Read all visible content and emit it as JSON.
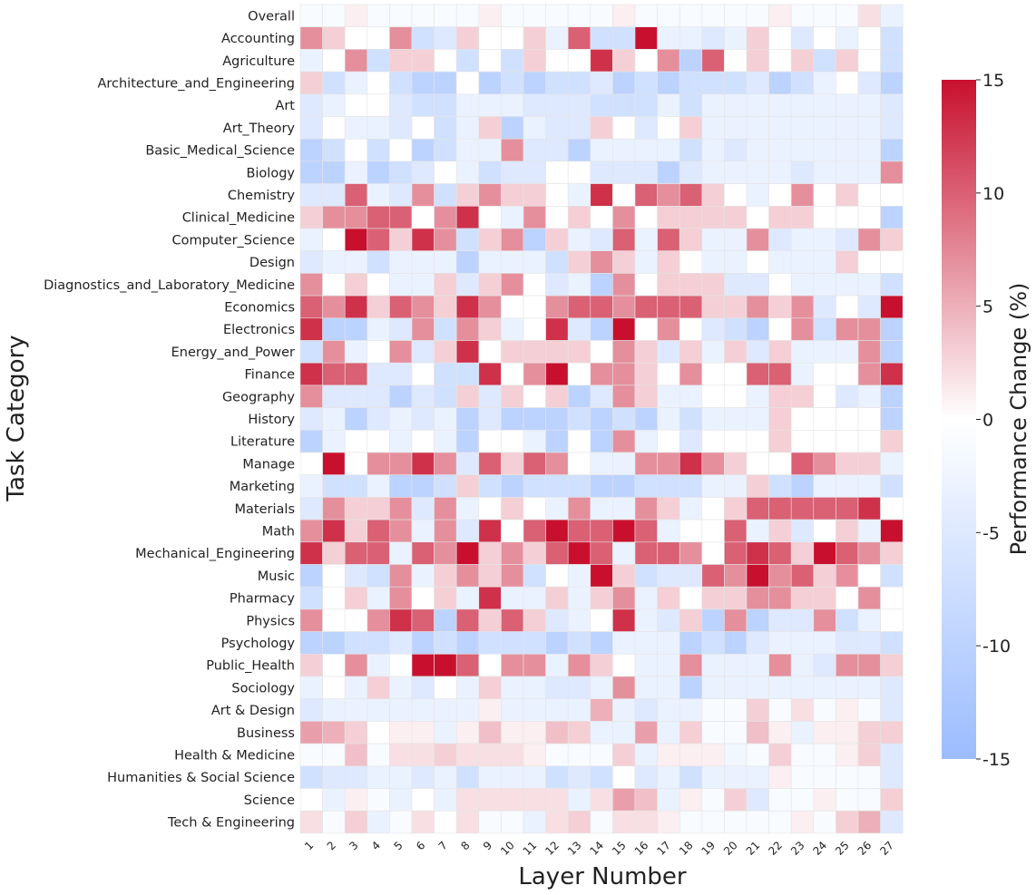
{
  "chart_data": {
    "type": "heatmap",
    "title": "",
    "xlabel": "Layer Number",
    "ylabel": "Task Category",
    "colorbar_label": "Performance Change (%)",
    "colorbar_range": [
      -15,
      15
    ],
    "colorbar_ticks": [
      "15",
      "10",
      "5",
      "0",
      "-5",
      "-10",
      "-15"
    ],
    "colormap": [
      "#9bbcff",
      "#ffffff",
      "#c8102e"
    ],
    "x": [
      "1",
      "2",
      "3",
      "4",
      "5",
      "6",
      "7",
      "8",
      "9",
      "10",
      "11",
      "12",
      "13",
      "14",
      "15",
      "16",
      "17",
      "18",
      "19",
      "20",
      "21",
      "22",
      "23",
      "24",
      "25",
      "26",
      "27"
    ],
    "y": [
      "Overall",
      "Accounting",
      "Agriculture",
      "Architecture_and_Engineering",
      "Art",
      "Art_Theory",
      "Basic_Medical_Science",
      "Biology",
      "Chemistry",
      "Clinical_Medicine",
      "Computer_Science",
      "Design",
      "Diagnostics_and_Laboratory_Medicine",
      "Economics",
      "Electronics",
      "Energy_and_Power",
      "Finance",
      "Geography",
      "History",
      "Literature",
      "Manage",
      "Marketing",
      "Materials",
      "Math",
      "Mechanical_Engineering",
      "Music",
      "Pharmacy",
      "Physics",
      "Psychology",
      "Public_Health",
      "Sociology",
      "Art & Design",
      "Business",
      "Health & Medicine",
      "Humanities & Social Science",
      "Science",
      "Tech & Engineering"
    ],
    "values": [
      [
        -1,
        -1,
        1,
        -1,
        -1,
        -1,
        -1,
        -1,
        1,
        -1,
        -1,
        -1,
        -1,
        -1,
        1,
        -1,
        -1,
        -1,
        -1,
        -1,
        -1,
        1,
        -1,
        -1,
        -1,
        2,
        -3
      ],
      [
        7,
        3,
        0,
        0,
        7,
        -7,
        -5,
        3,
        0,
        0,
        3,
        -3,
        10,
        -7,
        -7,
        15,
        -3,
        -3,
        -5,
        -3,
        3,
        0,
        -5,
        0,
        -3,
        0,
        -7
      ],
      [
        -3,
        0,
        7,
        -7,
        3,
        3,
        0,
        -7,
        0,
        -7,
        3,
        0,
        0,
        13,
        3,
        0,
        7,
        -10,
        10,
        0,
        3,
        0,
        3,
        -7,
        3,
        0,
        -7
      ],
      [
        3,
        -7,
        -3,
        0,
        -7,
        -10,
        -10,
        0,
        -10,
        -7,
        -10,
        -7,
        -7,
        -5,
        -10,
        -7,
        -10,
        -7,
        -7,
        -7,
        -5,
        -10,
        -7,
        -3,
        0,
        -5,
        -10
      ],
      [
        -5,
        -3,
        0,
        0,
        -5,
        -7,
        -7,
        -3,
        -3,
        -3,
        -5,
        -5,
        -5,
        -7,
        -7,
        -7,
        -3,
        -7,
        -3,
        -3,
        -3,
        -3,
        -3,
        -3,
        -3,
        -3,
        -5
      ],
      [
        -5,
        0,
        -3,
        -3,
        -5,
        0,
        -7,
        -3,
        3,
        -10,
        -3,
        -5,
        -5,
        3,
        0,
        -5,
        0,
        3,
        -3,
        -3,
        -3,
        -3,
        -3,
        -3,
        -3,
        -3,
        -5
      ],
      [
        -10,
        -7,
        0,
        -7,
        0,
        -10,
        -7,
        -3,
        -3,
        7,
        -5,
        -5,
        -10,
        -3,
        -3,
        -3,
        -3,
        -7,
        -3,
        -5,
        -3,
        -3,
        -3,
        -3,
        -3,
        -3,
        -10
      ],
      [
        -10,
        -10,
        -3,
        -10,
        -7,
        -5,
        0,
        -3,
        -7,
        -5,
        -5,
        0,
        0,
        -5,
        -5,
        -5,
        -10,
        -5,
        -3,
        -3,
        -3,
        -3,
        -5,
        -3,
        -3,
        -3,
        7
      ],
      [
        -5,
        -5,
        10,
        -3,
        -5,
        7,
        -7,
        3,
        7,
        3,
        3,
        0,
        -3,
        13,
        0,
        10,
        7,
        10,
        3,
        0,
        -3,
        0,
        7,
        0,
        3,
        0,
        0
      ],
      [
        3,
        7,
        7,
        10,
        10,
        0,
        7,
        13,
        0,
        -3,
        7,
        0,
        3,
        0,
        7,
        0,
        3,
        3,
        3,
        3,
        0,
        3,
        3,
        0,
        0,
        0,
        -10
      ],
      [
        -3,
        0,
        15,
        10,
        3,
        13,
        7,
        -7,
        3,
        7,
        -10,
        3,
        -3,
        -5,
        10,
        -3,
        10,
        3,
        -3,
        -3,
        7,
        -5,
        -3,
        -3,
        -5,
        7,
        3
      ],
      [
        -5,
        -3,
        -3,
        -7,
        -3,
        -3,
        -3,
        -10,
        -3,
        -3,
        -3,
        -7,
        3,
        7,
        3,
        -3,
        3,
        0,
        -3,
        -3,
        0,
        -3,
        -3,
        -3,
        3,
        0,
        0
      ],
      [
        7,
        0,
        3,
        0,
        -3,
        -3,
        3,
        -5,
        3,
        7,
        0,
        -5,
        -3,
        -10,
        7,
        0,
        3,
        3,
        3,
        -5,
        -5,
        0,
        -3,
        -3,
        -3,
        -3,
        -7
      ],
      [
        10,
        7,
        13,
        3,
        10,
        7,
        3,
        13,
        7,
        0,
        0,
        7,
        10,
        10,
        7,
        10,
        10,
        10,
        3,
        3,
        7,
        3,
        7,
        -5,
        0,
        -5,
        15
      ],
      [
        13,
        -10,
        -10,
        -3,
        -5,
        7,
        -7,
        7,
        3,
        -3,
        0,
        13,
        -5,
        -10,
        15,
        0,
        7,
        0,
        -5,
        -7,
        -10,
        0,
        7,
        -7,
        7,
        7,
        -10
      ],
      [
        -7,
        7,
        -3,
        0,
        7,
        -5,
        3,
        13,
        0,
        3,
        3,
        3,
        3,
        0,
        7,
        3,
        -5,
        3,
        -3,
        3,
        -5,
        3,
        -3,
        -3,
        -3,
        7,
        -10
      ],
      [
        13,
        10,
        10,
        -5,
        -5,
        0,
        -7,
        -7,
        13,
        0,
        7,
        15,
        0,
        7,
        7,
        3,
        0,
        7,
        0,
        0,
        10,
        10,
        -3,
        0,
        0,
        7,
        13
      ],
      [
        7,
        -5,
        -5,
        -5,
        -10,
        -5,
        -7,
        3,
        -5,
        3,
        0,
        3,
        -10,
        -5,
        7,
        3,
        -3,
        -3,
        0,
        0,
        -3,
        3,
        3,
        0,
        -5,
        -3,
        -10
      ],
      [
        -5,
        -3,
        -10,
        -5,
        -3,
        -5,
        -3,
        -10,
        -5,
        -10,
        -10,
        -10,
        -7,
        -10,
        -7,
        -10,
        -3,
        -7,
        -3,
        -3,
        -3,
        3,
        0,
        0,
        0,
        0,
        -10
      ],
      [
        -10,
        -3,
        0,
        0,
        -3,
        0,
        -3,
        -10,
        0,
        0,
        -3,
        -10,
        0,
        -10,
        7,
        -3,
        0,
        -5,
        0,
        0,
        0,
        3,
        0,
        0,
        0,
        0,
        3
      ],
      [
        0,
        15,
        0,
        7,
        7,
        13,
        7,
        -5,
        10,
        3,
        10,
        7,
        0,
        -3,
        -3,
        7,
        7,
        13,
        7,
        3,
        0,
        0,
        10,
        7,
        3,
        3,
        -3
      ],
      [
        -3,
        -7,
        -7,
        -3,
        -10,
        -10,
        -7,
        3,
        -7,
        -10,
        -7,
        -7,
        -7,
        -10,
        -10,
        -7,
        -7,
        -7,
        -3,
        -3,
        3,
        -7,
        -10,
        -3,
        -3,
        -3,
        -7
      ],
      [
        -5,
        7,
        3,
        3,
        7,
        -5,
        7,
        -3,
        0,
        3,
        0,
        -3,
        7,
        -3,
        -3,
        7,
        3,
        -3,
        0,
        3,
        10,
        10,
        10,
        10,
        10,
        13,
        0
      ],
      [
        7,
        13,
        3,
        10,
        7,
        -3,
        7,
        -5,
        13,
        0,
        10,
        15,
        10,
        10,
        15,
        10,
        -3,
        0,
        0,
        10,
        -3,
        3,
        -5,
        0,
        3,
        -3,
        15
      ],
      [
        13,
        3,
        10,
        10,
        -3,
        10,
        7,
        15,
        3,
        7,
        3,
        10,
        15,
        10,
        -3,
        10,
        10,
        7,
        0,
        10,
        13,
        10,
        3,
        15,
        10,
        7,
        3
      ],
      [
        -10,
        0,
        -5,
        -7,
        7,
        -3,
        3,
        7,
        3,
        7,
        -7,
        0,
        -3,
        15,
        3,
        -7,
        -5,
        -5,
        10,
        7,
        15,
        7,
        10,
        3,
        7,
        0,
        -7
      ],
      [
        -7,
        0,
        3,
        -3,
        7,
        0,
        3,
        -3,
        13,
        -3,
        -3,
        3,
        -3,
        3,
        7,
        -3,
        3,
        0,
        3,
        3,
        7,
        7,
        3,
        3,
        0,
        7,
        0
      ],
      [
        7,
        0,
        0,
        7,
        13,
        10,
        -10,
        10,
        3,
        10,
        3,
        -5,
        -3,
        0,
        13,
        -3,
        -5,
        3,
        -10,
        7,
        -10,
        -5,
        -5,
        7,
        -7,
        -3,
        0
      ],
      [
        -10,
        -10,
        -7,
        -7,
        -5,
        -10,
        -7,
        -10,
        -7,
        -7,
        -7,
        -10,
        -7,
        -10,
        -3,
        -3,
        -3,
        -10,
        -7,
        -10,
        -5,
        -3,
        -3,
        -3,
        -5,
        -5,
        -7
      ],
      [
        3,
        0,
        7,
        -3,
        0,
        15,
        15,
        10,
        0,
        7,
        7,
        -3,
        7,
        3,
        0,
        -3,
        -3,
        7,
        -3,
        -3,
        -3,
        7,
        -3,
        -5,
        7,
        7,
        3
      ],
      [
        -3,
        0,
        -3,
        3,
        -3,
        -5,
        0,
        -3,
        3,
        -3,
        -3,
        -5,
        -5,
        -3,
        7,
        -3,
        -3,
        -10,
        -3,
        -3,
        -3,
        -3,
        -3,
        -3,
        -3,
        -3,
        -5
      ],
      [
        -5,
        -3,
        -3,
        -3,
        -3,
        -3,
        -3,
        -3,
        1,
        -3,
        -3,
        -3,
        -3,
        5,
        -3,
        -5,
        -3,
        -3,
        -1,
        -1,
        3,
        -1,
        2,
        -1,
        1,
        -1,
        -5
      ],
      [
        6,
        5,
        3,
        0,
        1,
        1,
        -3,
        1,
        4,
        1,
        1,
        4,
        3,
        -3,
        -3,
        6,
        -3,
        3,
        -1,
        -1,
        4,
        1,
        -3,
        1,
        1,
        3,
        3
      ],
      [
        -1,
        -1,
        4,
        -1,
        2,
        2,
        3,
        2,
        2,
        2,
        1,
        -1,
        -1,
        -1,
        3,
        -3,
        1,
        1,
        1,
        -2,
        -1,
        3,
        -1,
        -1,
        1,
        3,
        -5
      ],
      [
        -7,
        -5,
        -5,
        -3,
        -3,
        -5,
        -3,
        -7,
        -3,
        -3,
        -3,
        -7,
        -5,
        -7,
        0,
        -5,
        -3,
        -7,
        -3,
        -3,
        -3,
        1,
        -1,
        -1,
        -1,
        -1,
        -5
      ],
      [
        0,
        -3,
        1,
        -1,
        -3,
        0,
        -3,
        2,
        2,
        2,
        2,
        2,
        -3,
        2,
        6,
        4,
        -3,
        1,
        -1,
        3,
        -5,
        -1,
        -1,
        1,
        -1,
        -1,
        3
      ],
      [
        2,
        -1,
        3,
        -3,
        -1,
        2,
        0,
        2,
        -1,
        -1,
        -3,
        2,
        3,
        -1,
        2,
        2,
        1,
        -1,
        -1,
        -1,
        -1,
        -1,
        1,
        -1,
        3,
        5,
        -5
      ]
    ]
  }
}
